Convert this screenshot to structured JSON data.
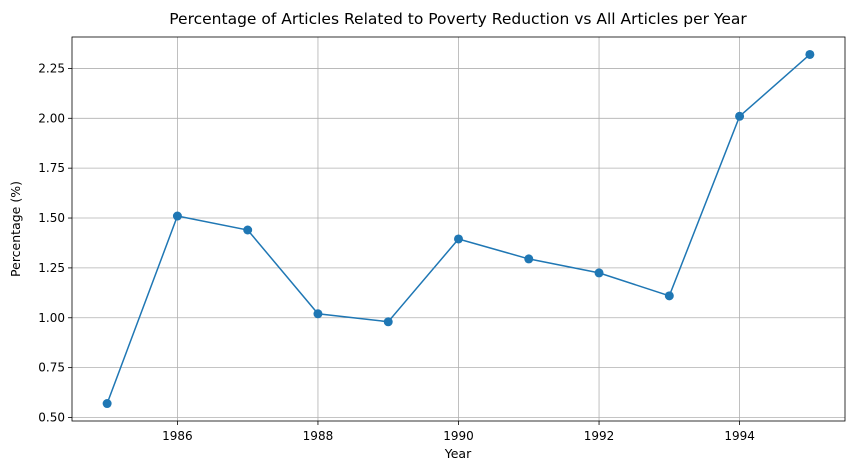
{
  "chart_data": {
    "type": "line",
    "title": "Percentage of Articles Related to Poverty Reduction vs All Articles per Year",
    "xlabel": "Year",
    "ylabel": "Percentage (%)",
    "x": [
      1985,
      1986,
      1987,
      1988,
      1989,
      1990,
      1991,
      1992,
      1993,
      1994,
      1995
    ],
    "series": [
      {
        "values": [
          0.57,
          1.51,
          1.44,
          1.02,
          0.98,
          1.395,
          1.295,
          1.225,
          1.11,
          2.01,
          2.32
        ]
      }
    ],
    "xlim": [
      1984.5,
      1995.5
    ],
    "ylim": [
      0.4825,
      2.4075
    ],
    "xticks": [
      1986,
      1988,
      1990,
      1992,
      1994
    ],
    "yticks": [
      "0.50",
      "0.75",
      "1.00",
      "1.25",
      "1.50",
      "1.75",
      "2.00",
      "2.25"
    ],
    "grid": true,
    "line_color": "#1f77b4",
    "grid_color": "#b0b0b0"
  }
}
